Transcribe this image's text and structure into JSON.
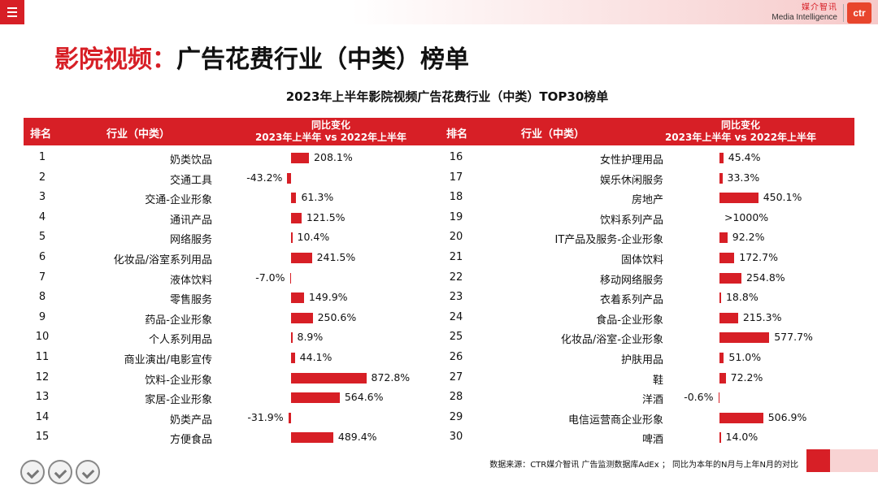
{
  "header": {
    "brand_cn": "媒介智讯",
    "brand_en": "Media Intelligence",
    "brand_logo": "ctr"
  },
  "title": {
    "part1": "影院视频：",
    "part2": "广告花费行业（中类）榜单"
  },
  "table": {
    "title": "2023年上半年影院视频广告花费行业（中类）TOP30榜单",
    "col_rank": "排名",
    "col_industry": "行业（中类）",
    "col_yoy_1": "同比变化",
    "col_yoy_2": "2023年上半年 vs 2022年上半年",
    "rows": [
      {
        "rank": "1",
        "industry": "奶类饮品",
        "label": "208.1%",
        "value": 208.1
      },
      {
        "rank": "2",
        "industry": "交通工具",
        "label": "-43.2%",
        "value": -43.2
      },
      {
        "rank": "3",
        "industry": "交通-企业形象",
        "label": "61.3%",
        "value": 61.3
      },
      {
        "rank": "4",
        "industry": "通讯产品",
        "label": "121.5%",
        "value": 121.5
      },
      {
        "rank": "5",
        "industry": "网络服务",
        "label": "10.4%",
        "value": 10.4
      },
      {
        "rank": "6",
        "industry": "化妆品/浴室系列用品",
        "label": "241.5%",
        "value": 241.5
      },
      {
        "rank": "7",
        "industry": "液体饮料",
        "label": "-7.0%",
        "value": -7.0
      },
      {
        "rank": "8",
        "industry": "零售服务",
        "label": "149.9%",
        "value": 149.9
      },
      {
        "rank": "9",
        "industry": "药品-企业形象",
        "label": "250.6%",
        "value": 250.6
      },
      {
        "rank": "10",
        "industry": "个人系列用品",
        "label": "8.9%",
        "value": 8.9
      },
      {
        "rank": "11",
        "industry": "商业演出/电影宣传",
        "label": "44.1%",
        "value": 44.1
      },
      {
        "rank": "12",
        "industry": "饮料-企业形象",
        "label": "872.8%",
        "value": 872.8
      },
      {
        "rank": "13",
        "industry": "家居-企业形象",
        "label": "564.6%",
        "value": 564.6
      },
      {
        "rank": "14",
        "industry": "奶类产品",
        "label": "-31.9%",
        "value": -31.9
      },
      {
        "rank": "15",
        "industry": "方便食品",
        "label": "489.4%",
        "value": 489.4
      },
      {
        "rank": "16",
        "industry": "女性护理用品",
        "label": "45.4%",
        "value": 45.4
      },
      {
        "rank": "17",
        "industry": "娱乐休闲服务",
        "label": "33.3%",
        "value": 33.3
      },
      {
        "rank": "18",
        "industry": "房地产",
        "label": "450.1%",
        "value": 450.1
      },
      {
        "rank": "19",
        "industry": "饮料系列产品",
        "label": ">1000%",
        "value": null
      },
      {
        "rank": "20",
        "industry": "IT产品及服务-企业形象",
        "label": "92.2%",
        "value": 92.2
      },
      {
        "rank": "21",
        "industry": "固体饮料",
        "label": "172.7%",
        "value": 172.7
      },
      {
        "rank": "22",
        "industry": "移动网络服务",
        "label": "254.8%",
        "value": 254.8
      },
      {
        "rank": "23",
        "industry": "衣着系列产品",
        "label": "18.8%",
        "value": 18.8
      },
      {
        "rank": "24",
        "industry": "食品-企业形象",
        "label": "215.3%",
        "value": 215.3
      },
      {
        "rank": "25",
        "industry": "化妆品/浴室-企业形象",
        "label": "577.7%",
        "value": 577.7
      },
      {
        "rank": "26",
        "industry": "护肤用品",
        "label": "51.0%",
        "value": 51.0
      },
      {
        "rank": "27",
        "industry": "鞋",
        "label": "72.2%",
        "value": 72.2
      },
      {
        "rank": "28",
        "industry": "洋酒",
        "label": "-0.6%",
        "value": -0.6
      },
      {
        "rank": "29",
        "industry": "电信运营商企业形象",
        "label": "506.9%",
        "value": 506.9
      },
      {
        "rank": "30",
        "industry": "啤酒",
        "label": "14.0%",
        "value": 14.0
      }
    ]
  },
  "footer": {
    "source": "数据来源：CTR媒介智讯 广告监测数据库AdEx ； 同比为本年的N月与上年N月的对比",
    "certs": [
      "SGS",
      "SGS",
      "SGS"
    ]
  },
  "colors": {
    "accent": "#d71f26"
  }
}
